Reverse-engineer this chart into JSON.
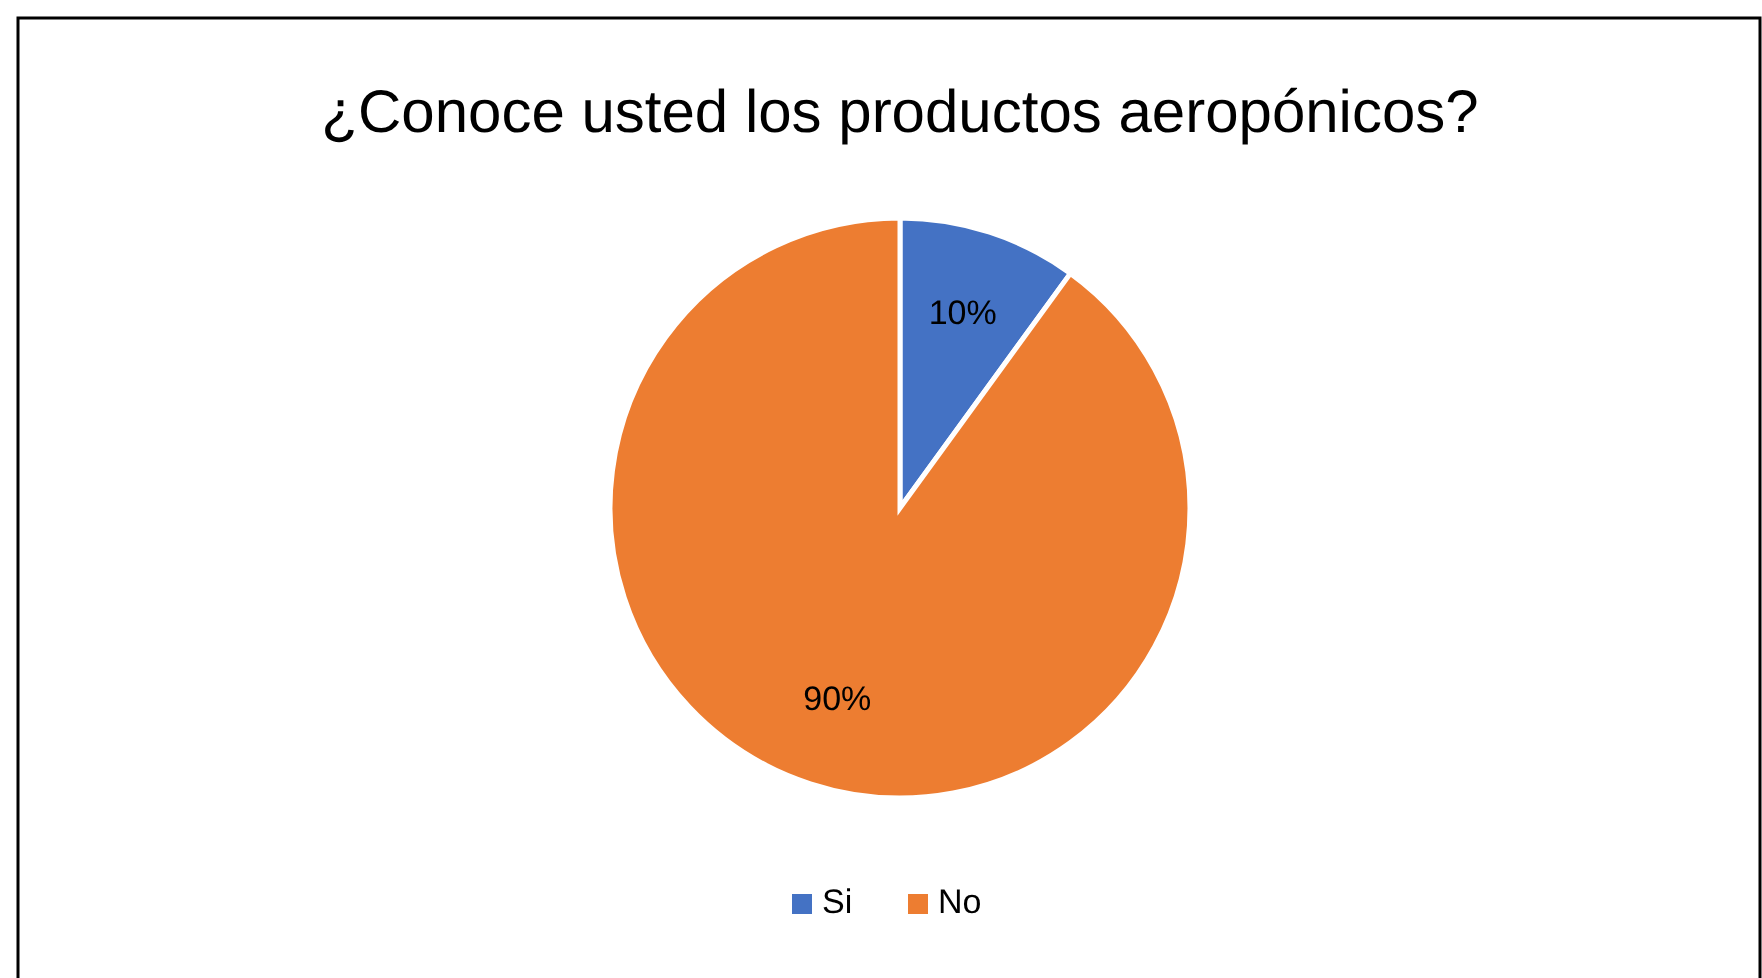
{
  "chart_data": {
    "type": "pie",
    "title": "¿Conoce usted los productos aeropónicos?",
    "categories": [
      "Si",
      "No"
    ],
    "values": [
      10,
      90
    ],
    "colors": [
      "#4472c4",
      "#ed7d31"
    ],
    "value_labels": [
      "10%",
      "90%"
    ],
    "legend": "bottom"
  }
}
